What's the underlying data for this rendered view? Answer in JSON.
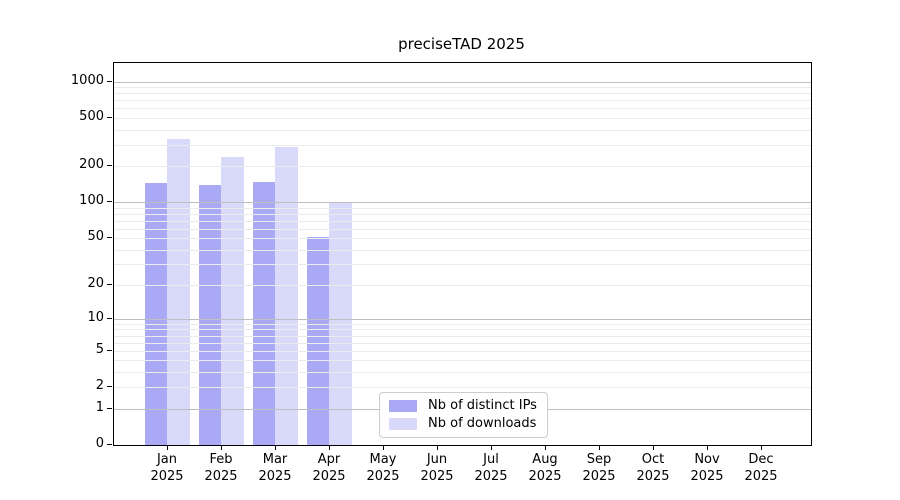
{
  "title": "preciseTAD 2025",
  "chart_data": {
    "type": "bar",
    "title": "preciseTAD 2025",
    "yscale": "log1p",
    "ylim": [
      0,
      1375
    ],
    "yticks": [
      0,
      1,
      2,
      5,
      10,
      20,
      50,
      100,
      200,
      500,
      1000
    ],
    "grid": "horizontal, log minor + major, drawn over bars",
    "categories": [
      "Jan",
      "Feb",
      "Mar",
      "Apr",
      "May",
      "Jun",
      "Jul",
      "Aug",
      "Sep",
      "Oct",
      "Nov",
      "Dec"
    ],
    "category_year": "2025",
    "series": [
      {
        "name": "Nb of distinct IPs",
        "color": "#a9a9f5",
        "values": [
          145,
          140,
          148,
          51,
          0,
          0,
          0,
          0,
          0,
          0,
          0,
          0
        ]
      },
      {
        "name": "Nb of downloads",
        "color": "#d9d9f9",
        "values": [
          335,
          240,
          290,
          100,
          0,
          0,
          0,
          0,
          0,
          0,
          0,
          0
        ]
      }
    ],
    "legend_position": "inside bottom-center"
  },
  "colors": {
    "background": "#ffffff",
    "axis": "#000000",
    "grid_major": "#bfbfbf",
    "grid_minor": "#ebebeb",
    "legend_border": "#cccccc",
    "text": "#000000"
  }
}
